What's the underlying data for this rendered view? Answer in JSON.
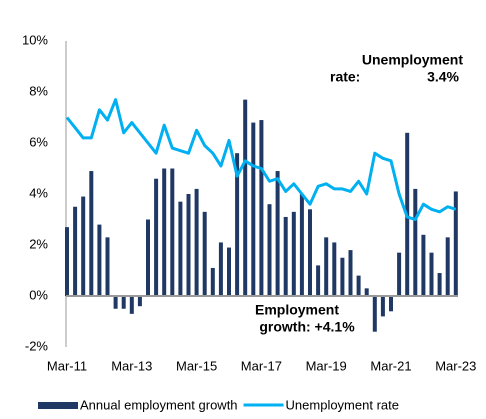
{
  "chart_data": {
    "type": "bar-line",
    "categories": [
      "Mar-11",
      null,
      null,
      null,
      null,
      null,
      null,
      null,
      "Mar-13",
      null,
      null,
      null,
      null,
      null,
      null,
      null,
      "Mar-15",
      null,
      null,
      null,
      null,
      null,
      null,
      null,
      "Mar-17",
      null,
      null,
      null,
      null,
      null,
      null,
      null,
      "Mar-19",
      null,
      null,
      null,
      null,
      null,
      null,
      null,
      "Mar-21",
      null,
      null,
      null,
      null,
      null,
      null,
      null,
      "Mar-23"
    ],
    "series": [
      {
        "name": "Annual employment growth",
        "type": "bar",
        "color": "#203864",
        "values": [
          2.7,
          3.5,
          3.9,
          4.9,
          2.8,
          2.3,
          -0.5,
          -0.5,
          -0.7,
          -0.4,
          3.0,
          4.6,
          5.0,
          5.0,
          3.7,
          4.0,
          4.2,
          3.3,
          1.1,
          2.1,
          1.9,
          5.6,
          7.7,
          6.8,
          6.9,
          3.6,
          4.9,
          3.1,
          3.3,
          4.0,
          3.4,
          1.2,
          2.3,
          2.1,
          1.5,
          1.8,
          0.8,
          0.3,
          -1.4,
          -0.8,
          -0.6,
          1.7,
          6.4,
          4.2,
          2.4,
          1.7,
          0.9,
          2.3,
          4.1
        ]
      },
      {
        "name": "Unemployment rate",
        "type": "line",
        "color": "#00b0f0",
        "values": [
          7.0,
          6.6,
          6.2,
          6.2,
          7.3,
          6.9,
          7.7,
          6.4,
          6.8,
          6.4,
          6.0,
          5.6,
          6.7,
          5.8,
          5.7,
          5.6,
          6.5,
          5.9,
          5.6,
          5.1,
          6.1,
          4.7,
          5.3,
          5.1,
          5.0,
          4.5,
          4.6,
          4.1,
          4.4,
          4.0,
          3.6,
          4.3,
          4.4,
          4.2,
          4.2,
          4.1,
          4.5,
          4.0,
          5.6,
          5.4,
          5.3,
          4.0,
          3.1,
          3.0,
          3.6,
          3.4,
          3.3,
          3.5,
          3.4
        ]
      }
    ],
    "ylim": [
      -2,
      10
    ],
    "yticks": [
      {
        "value": -2,
        "label": "-2%"
      },
      {
        "value": 0,
        "label": "0%"
      },
      {
        "value": 2,
        "label": "2%"
      },
      {
        "value": 4,
        "label": "4%"
      },
      {
        "value": 6,
        "label": "6%"
      },
      {
        "value": 8,
        "label": "8%"
      },
      {
        "value": 10,
        "label": "10%"
      }
    ],
    "grid": false,
    "legend": "bottom",
    "annotations": [
      {
        "lines": [
          "Unemployment",
          "rate:",
          "3.4%"
        ],
        "color": "#00b0f0"
      },
      {
        "lines": [
          "Employment",
          "growth: +4.1%"
        ],
        "color": "#203864"
      }
    ]
  }
}
